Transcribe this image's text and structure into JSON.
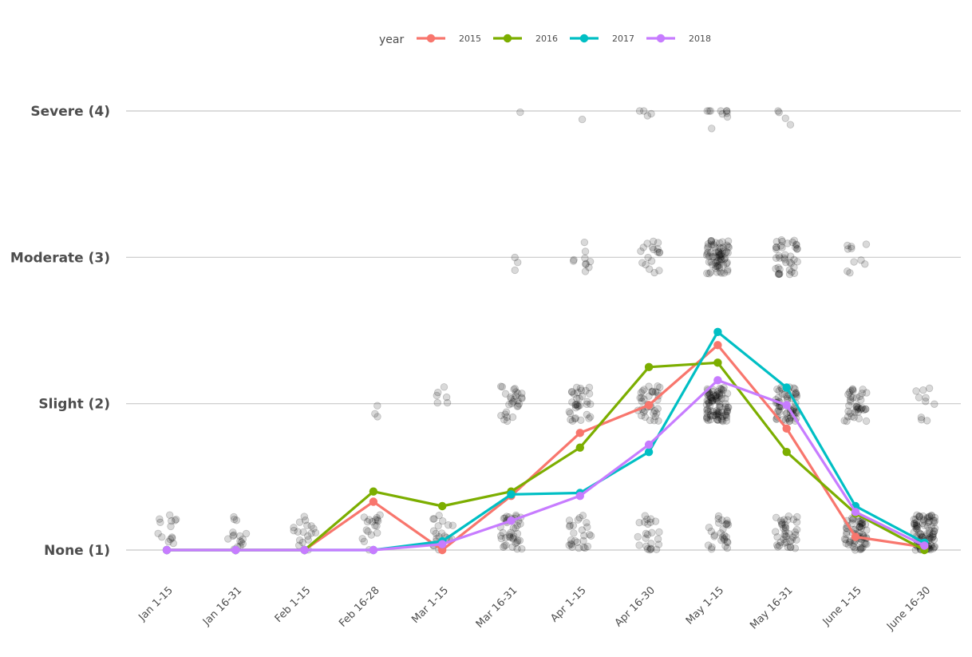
{
  "chart_data": {
    "type": "line",
    "title": "",
    "xlabel": "",
    "ylabel": "",
    "categories": [
      "Jan 1-15",
      "Jan 16-31",
      "Feb 1-15",
      "Feb 16-28",
      "Mar 1-15",
      "Mar 16-31",
      "Apr 1-15",
      "Apr 16-30",
      "May 1-15",
      "May 16-31",
      "June 1-15",
      "June 16-30"
    ],
    "y_ticks": [
      {
        "value": 1,
        "label": "None (1)"
      },
      {
        "value": 2,
        "label": "Slight (2)"
      },
      {
        "value": 3,
        "label": "Moderate (3)"
      },
      {
        "value": 4,
        "label": "Severe (4)"
      }
    ],
    "ylim": [
      1,
      4
    ],
    "grid": "horizontal",
    "legend": {
      "title": "year",
      "position": "top"
    },
    "series": [
      {
        "name": "2015",
        "color": "#F8766D",
        "values": [
          1.0,
          1.0,
          1.0,
          1.33,
          1.0,
          1.37,
          1.8,
          1.99,
          2.4,
          1.83,
          1.09,
          1.02
        ]
      },
      {
        "name": "2016",
        "color": "#7CAE00",
        "values": [
          1.0,
          1.0,
          1.0,
          1.4,
          1.3,
          1.4,
          1.7,
          2.25,
          2.28,
          1.67,
          1.25,
          1.0
        ]
      },
      {
        "name": "2017",
        "color": "#00BFC4",
        "values": [
          1.0,
          1.0,
          1.0,
          1.0,
          1.06,
          1.38,
          1.39,
          1.67,
          2.49,
          2.11,
          1.3,
          1.05
        ]
      },
      {
        "name": "2018",
        "color": "#C77CFF",
        "values": [
          1.0,
          1.0,
          1.0,
          1.0,
          1.04,
          1.2,
          1.37,
          1.72,
          2.16,
          1.99,
          1.26,
          1.03
        ]
      }
    ],
    "scatter_note": "jittered individual observations in grey",
    "scatter_color": "#000000",
    "scatter_counts": {
      "Jan 1-15": {
        "1": 14
      },
      "Jan 16-31": {
        "1": 16
      },
      "Feb 1-15": {
        "1": 18
      },
      "Feb 16-28": {
        "1": 18,
        "2": 3
      },
      "Mar 1-15": {
        "1": 20,
        "2": 6
      },
      "Mar 16-31": {
        "1": 40,
        "2": 28,
        "3": 3,
        "4": 1
      },
      "Apr 1-15": {
        "1": 26,
        "2": 34,
        "3": 10,
        "4": 1
      },
      "Apr 16-30": {
        "1": 24,
        "2": 36,
        "3": 18,
        "4": 4
      },
      "May 1-15": {
        "1": 28,
        "2": 90,
        "3": 70,
        "4": 10
      },
      "May 16-31": {
        "1": 40,
        "2": 60,
        "3": 40,
        "4": 4
      },
      "June 1-15": {
        "1": 60,
        "2": 40,
        "3": 10
      },
      "June 16-30": {
        "1": 90,
        "2": 10
      }
    }
  }
}
